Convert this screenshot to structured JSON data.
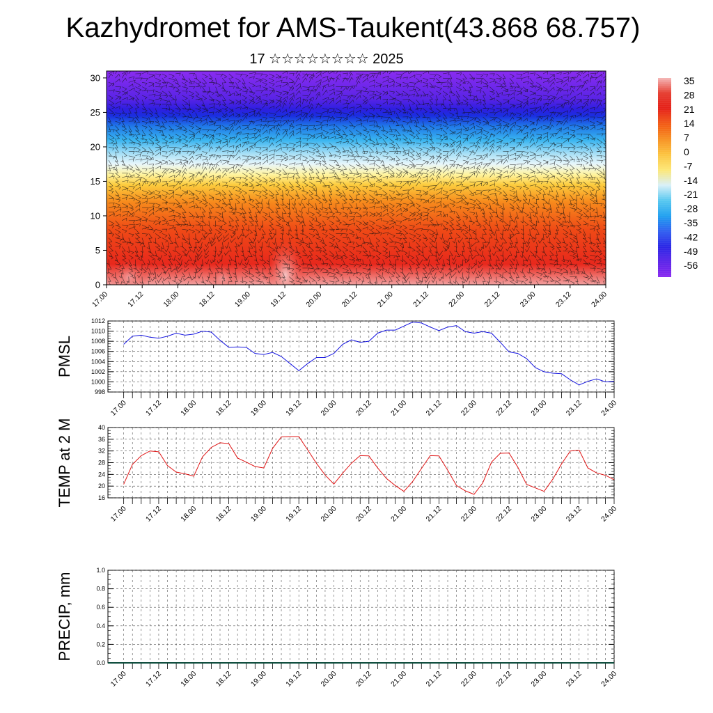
{
  "title": "Kazhydromet for AMS-Taukent(43.868 68.757)",
  "subtitle": "17 ☆☆☆☆☆☆☆☆ 2025",
  "chart_data": [
    {
      "type": "heatmap",
      "panel": "cross-section",
      "description_visible": "filled temperature with wind barbs",
      "y_ticks": [
        "0",
        "5",
        "10",
        "15",
        "20",
        "25",
        "30"
      ],
      "ylim": [
        0,
        31
      ],
      "x_ticks": [
        "17.00",
        "17.12",
        "18.00",
        "18.12",
        "19.00",
        "19.12",
        "20.00",
        "20.12",
        "21.00",
        "21.12",
        "22.00",
        "22.12",
        "23.00",
        "23.12",
        "24.00"
      ],
      "colorbar": {
        "labels": [
          "35",
          "28",
          "21",
          "14",
          "7",
          "0",
          "-7",
          "-14",
          "-21",
          "-28",
          "-35",
          "-42",
          "-49",
          "-56"
        ],
        "colors": [
          "#f4b6b6",
          "#e53a2c",
          "#e52018",
          "#f25a14",
          "#f79020",
          "#fcc440",
          "#fde775",
          "#d8f0f8",
          "#58c8f0",
          "#1ea0f0",
          "#2e5ef0",
          "#2a26e6",
          "#5a22e8",
          "#8a2af0"
        ]
      },
      "layers": [
        {
          "z": 0,
          "color": "#f2a0a0"
        },
        {
          "z": 3,
          "color": "#e8281c"
        },
        {
          "z": 8,
          "color": "#ef4a16"
        },
        {
          "z": 12,
          "color": "#f78a1c"
        },
        {
          "z": 14.5,
          "color": "#fccc3e"
        },
        {
          "z": 16,
          "color": "#fff4a0"
        },
        {
          "z": 17.5,
          "color": "#e8f6fb"
        },
        {
          "z": 19,
          "color": "#a8e0f6"
        },
        {
          "z": 21,
          "color": "#38b4f0"
        },
        {
          "z": 23,
          "color": "#2078e8"
        },
        {
          "z": 24.5,
          "color": "#1a2ee0"
        },
        {
          "z": 25.5,
          "color": "#2e1ee0"
        },
        {
          "z": 27,
          "color": "#5a24e6"
        },
        {
          "z": 31,
          "color": "#8a2cf0"
        }
      ]
    },
    {
      "type": "line",
      "panel": "pmsl",
      "ylabel": "PMSL",
      "ylim": [
        998,
        1012
      ],
      "y_ticks": [
        "998",
        "1000",
        "1002",
        "1004",
        "1006",
        "1008",
        "1010",
        "1012"
      ],
      "x_ticks": [
        "17.00",
        "17.12",
        "18.00",
        "18.12",
        "19.00",
        "19.12",
        "20.00",
        "20.12",
        "21.00",
        "21.12",
        "22.00",
        "22.12",
        "23.00",
        "23.12",
        "24.00"
      ],
      "x_step_hours": 3,
      "series": [
        {
          "color": "#1414e0",
          "values": [
            1007.4,
            1009.0,
            1009.2,
            1008.8,
            1008.6,
            1009.0,
            1009.6,
            1009.2,
            1009.4,
            1010.0,
            1009.8,
            1008.2,
            1006.8,
            1006.9,
            1006.8,
            1005.6,
            1005.4,
            1005.8,
            1005.0,
            1003.6,
            1002.2,
            1003.6,
            1004.8,
            1004.8,
            1005.6,
            1007.4,
            1008.3,
            1007.8,
            1008.0,
            1009.6,
            1010.2,
            1010.2,
            1011.0,
            1011.8,
            1011.6,
            1010.8,
            1010.1,
            1010.8,
            1011.1,
            1009.9,
            1009.6,
            1009.9,
            1009.6,
            1007.8,
            1005.9,
            1005.6,
            1004.6,
            1002.8,
            1002.0,
            1001.7,
            1001.6,
            1000.4,
            999.4,
            1000.1,
            1000.6,
            1000.0,
            1000.1
          ]
        }
      ]
    },
    {
      "type": "line",
      "panel": "temp2m",
      "ylabel": "TEMP at 2 M",
      "ylim": [
        16,
        40
      ],
      "y_ticks": [
        "16",
        "20",
        "24",
        "28",
        "32",
        "36",
        "40"
      ],
      "x_ticks": [
        "17.00",
        "17.12",
        "18.00",
        "18.12",
        "19.00",
        "19.12",
        "20.00",
        "20.12",
        "21.00",
        "21.12",
        "22.00",
        "22.12",
        "23.00",
        "23.12",
        "24.00"
      ],
      "x_step_hours": 3,
      "series": [
        {
          "color": "#e01414",
          "values": [
            20.6,
            27.4,
            30.4,
            32.0,
            31.7,
            27.0,
            24.8,
            24.2,
            23.4,
            30.0,
            33.2,
            34.8,
            34.5,
            29.6,
            28.2,
            26.7,
            26.2,
            32.9,
            36.8,
            36.9,
            36.9,
            32.4,
            27.8,
            23.8,
            20.7,
            24.4,
            27.8,
            30.4,
            30.3,
            26.2,
            22.6,
            20.2,
            18.2,
            21.6,
            26.0,
            30.4,
            30.3,
            25.4,
            20.2,
            18.4,
            17.2,
            21.1,
            28.2,
            31.2,
            31.3,
            26.5,
            20.6,
            19.4,
            18.2,
            22.4,
            27.6,
            32.0,
            32.3,
            26.2,
            24.5,
            23.7,
            22.2
          ]
        }
      ]
    },
    {
      "type": "line",
      "panel": "precip",
      "ylabel": "PRECIP, mm",
      "ylim": [
        0,
        1
      ],
      "y_ticks": [
        "0.0",
        "0.2",
        "0.4",
        "0.6",
        "0.8",
        "1.0"
      ],
      "x_ticks": [
        "17.00",
        "17.12",
        "18.00",
        "18.12",
        "19.00",
        "19.12",
        "20.00",
        "20.12",
        "21.00",
        "21.12",
        "22.00",
        "22.12",
        "23.00",
        "23.12",
        "24.00"
      ],
      "series": [
        {
          "color": "#0a4a3a",
          "values": [
            0,
            0,
            0,
            0,
            0,
            0,
            0,
            0,
            0,
            0,
            0,
            0,
            0,
            0,
            0
          ]
        }
      ]
    }
  ]
}
